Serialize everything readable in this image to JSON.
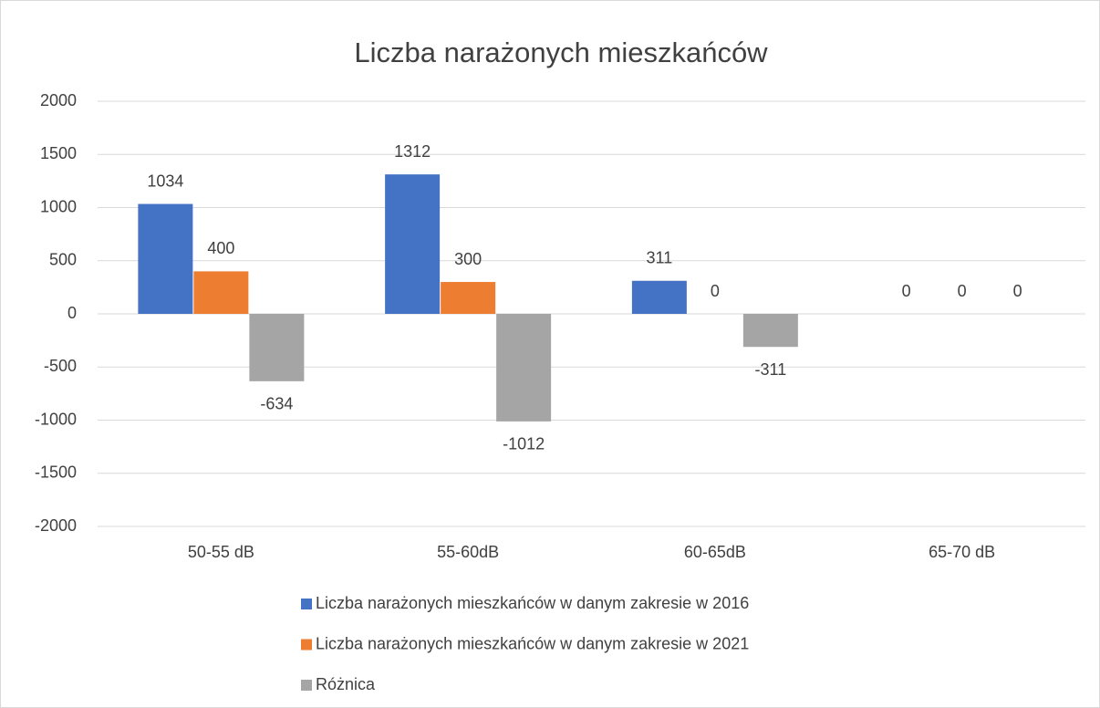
{
  "chart_data": {
    "type": "bar",
    "title": "Liczba narażonych mieszkańców",
    "categories": [
      "50-55 dB",
      "55-60dB",
      "60-65dB",
      "65-70 dB"
    ],
    "series": [
      {
        "name": "Liczba narażonych mieszkańców w danym zakresie w 2016",
        "color": "#4472c4",
        "values": [
          1034,
          1312,
          311,
          0
        ]
      },
      {
        "name": "Liczba narażonych mieszkańców w danym zakresie w 2021",
        "color": "#ed7d31",
        "values": [
          400,
          300,
          0,
          0
        ]
      },
      {
        "name": "Różnica",
        "color": "#a5a5a5",
        "values": [
          -634,
          -1012,
          -311,
          0
        ]
      }
    ],
    "ylim": [
      -2000,
      2000
    ],
    "yticks": [
      -2000,
      -1500,
      -1000,
      -500,
      0,
      500,
      1000,
      1500,
      2000
    ],
    "grid": true,
    "legend": "bottom"
  }
}
